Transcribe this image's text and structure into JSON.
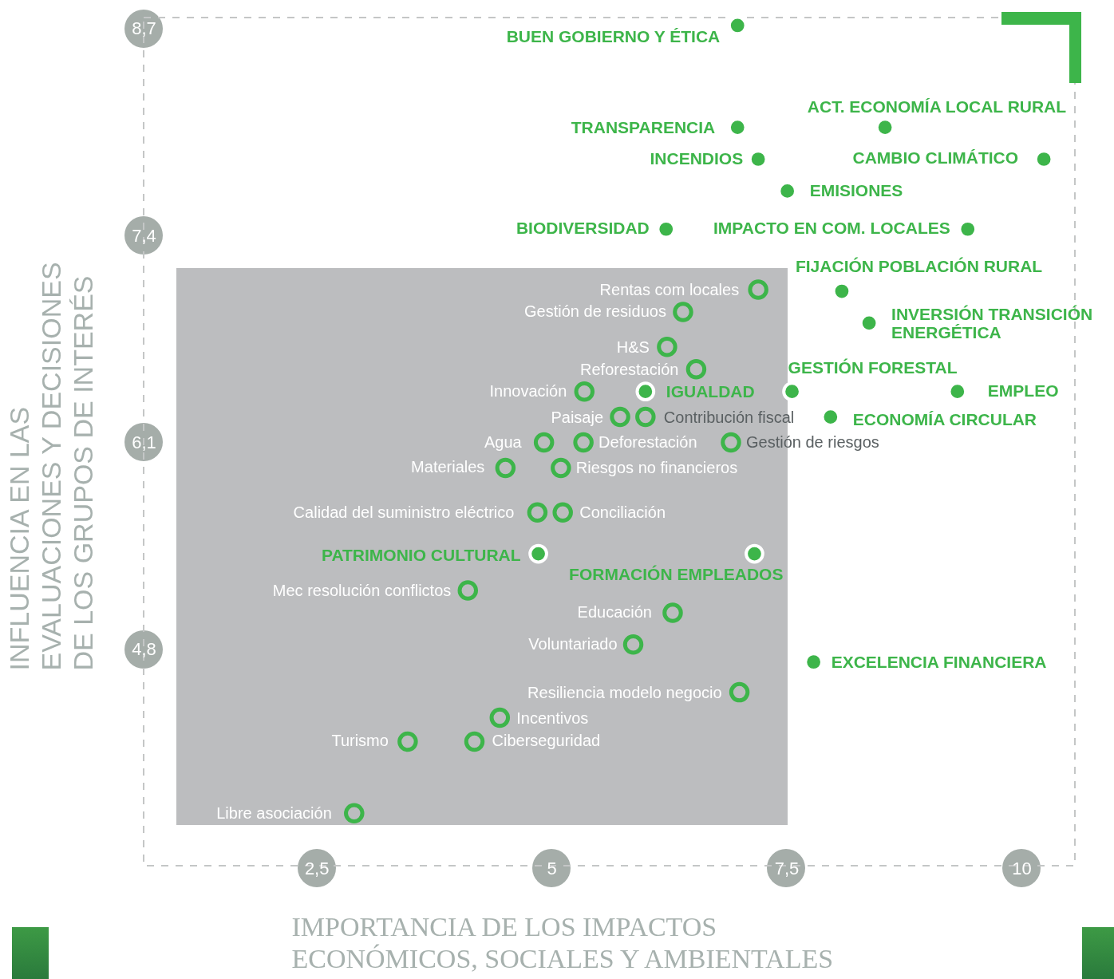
{
  "chart_data": {
    "type": "scatter",
    "xlabel": "IMPORTANCIA DE LOS IMPACTOS\nECONÓMICOS, SOCIALES Y AMBIENTALES",
    "ylabel": "INFLUENCIA EN LAS\nEVALUACIONES Y DECISIONES\nDE LOS GRUPOS DE INTERÉS",
    "xlim": [
      0.66,
      10.57
    ],
    "ylim": [
      3.44,
      8.77
    ],
    "xticks": [
      {
        "value": 2.5,
        "label": "2,5"
      },
      5,
      {
        "value": 7.5,
        "label": "7,5"
      },
      10
    ],
    "yticks": [
      {
        "value": 4.8,
        "label": "4,8"
      },
      {
        "value": 6.1,
        "label": "6,1"
      },
      {
        "value": 7.4,
        "label": "7,4"
      },
      {
        "value": 8.7,
        "label": "8,7"
      }
    ],
    "grid": false,
    "marker": "circle",
    "series": [
      {
        "color": "#3db54a",
        "x": [
          6.98,
          6.98,
          8.55,
          7.2,
          10.24,
          7.51,
          6.22,
          9.43,
          8.09,
          8.38,
          7.56,
          9.32,
          7.97,
          6.0,
          4.86,
          7.16,
          7.79
        ],
        "values": [
          8.72,
          8.08,
          8.08,
          7.88,
          7.88,
          7.68,
          7.44,
          7.44,
          7.05,
          6.85,
          6.42,
          6.42,
          6.26,
          6.42,
          5.4,
          5.4,
          4.72
        ],
        "value_labels": [
          "BUEN GOBIERNO Y ÉTICA",
          "TRANSPARENCIA",
          "ACT. ECONOMÍA LOCAL RURAL",
          "INCENDIOS",
          "CAMBIO CLIMÁTICO",
          "EMISIONES",
          "BIODIVERSIDAD",
          "IMPACTO EN COM. LOCALES",
          "FIJACIÓN POBLACIÓN RURAL",
          "INVERSIÓN TRANSICIÓN\nENERGÉTICA",
          "GESTIÓN FORESTAL",
          "EMPLEO",
          "ECONOMÍA CIRCULAR",
          "IGUALDAD",
          "PATRIMONIO CULTURAL",
          "FORMACIÓN EMPLEADOS",
          "EXCELENCIA FINANCIERA"
        ]
      },
      {
        "color": "#3db54a",
        "x": [
          7.2,
          6.4,
          6.23,
          6.54,
          5.35,
          5.73,
          6.0,
          4.92,
          5.34,
          6.91,
          4.51,
          5.1,
          4.85,
          5.12,
          4.11,
          6.29,
          5.87,
          7.0,
          4.45,
          3.47,
          4.18,
          2.9
        ],
        "values": [
          7.06,
          6.92,
          6.7,
          6.56,
          6.42,
          6.26,
          6.26,
          6.1,
          6.1,
          6.1,
          5.94,
          5.94,
          5.66,
          5.66,
          5.17,
          5.03,
          4.83,
          4.53,
          4.37,
          4.22,
          4.22,
          3.77
        ],
        "value_labels": [
          "Rentas com locales",
          "Gestión de residuos",
          "H&S",
          "Reforestación",
          "Innovación",
          "Paisaje",
          "Contribución fiscal",
          "Agua",
          "Deforestación",
          "Gestión de riesgos",
          "Materiales",
          "Riesgos no financieros",
          "Calidad del suministro eléctrico",
          "Conciliación",
          "Mec resolución conflictos",
          "Educación",
          "Voluntariado",
          "Resiliencia modelo negocio",
          "Incentivos",
          "Turismo",
          "Ciberseguridad",
          "Libre asociación"
        ]
      }
    ]
  }
}
